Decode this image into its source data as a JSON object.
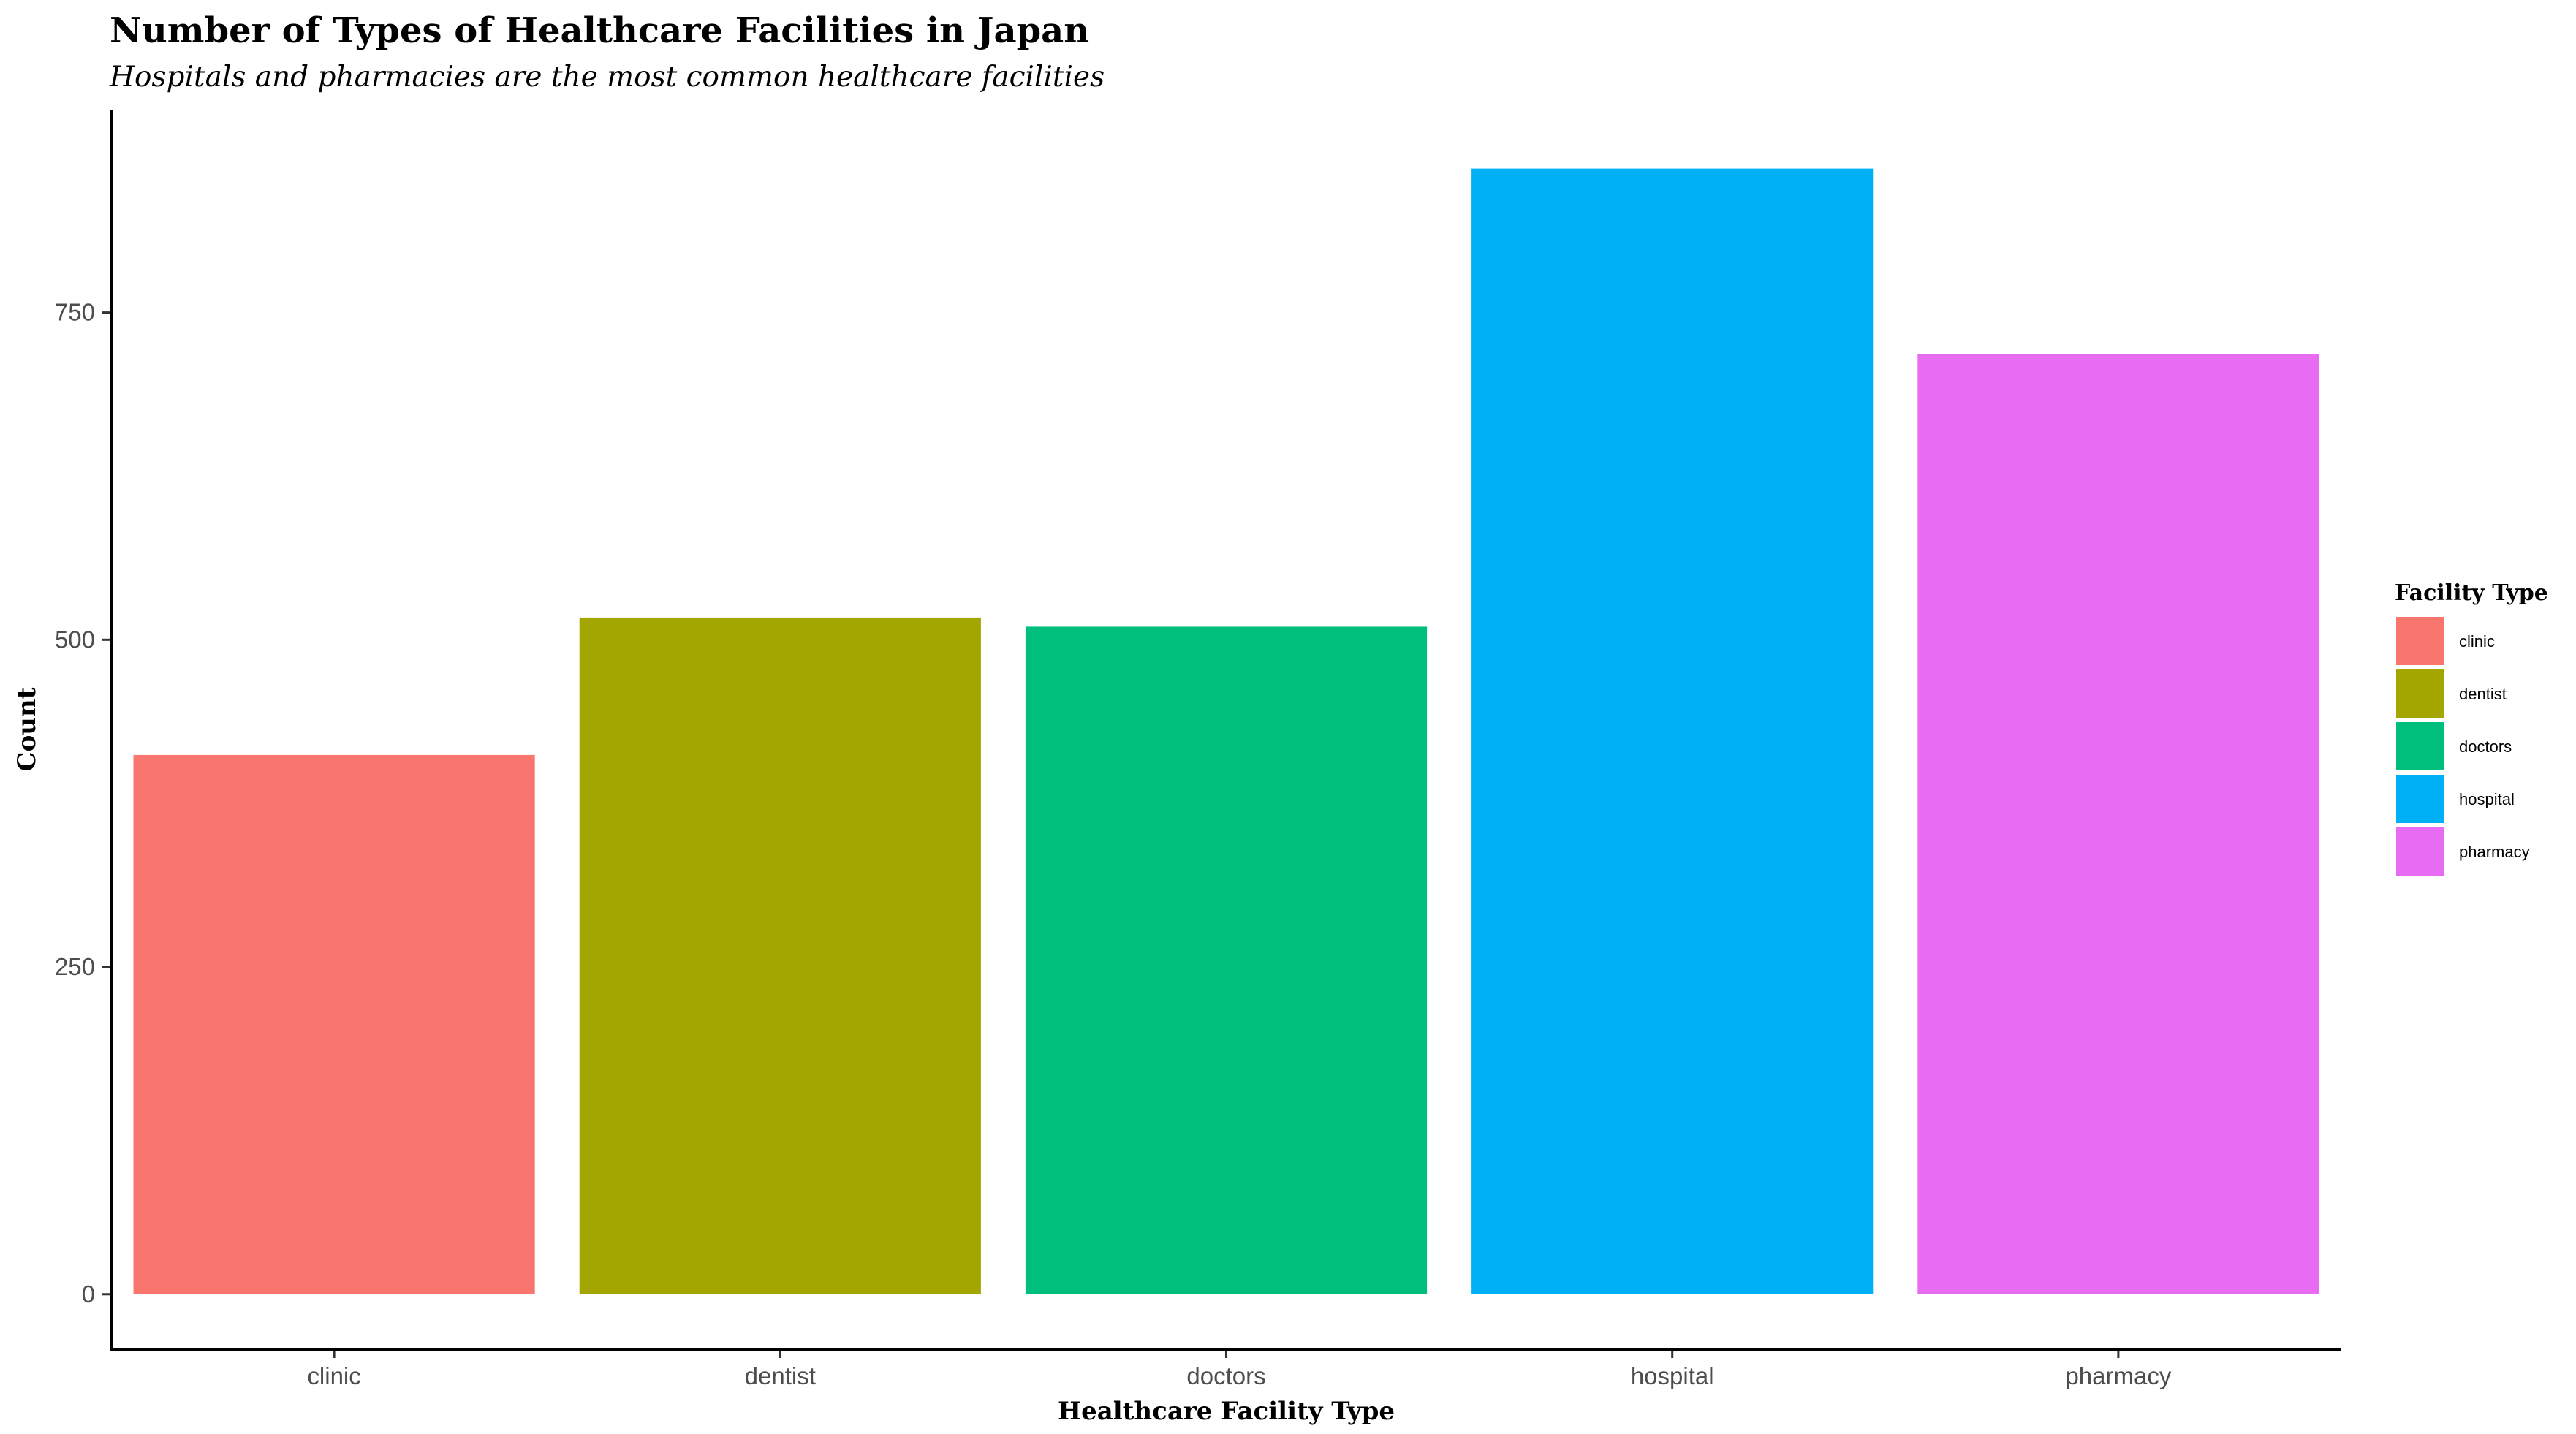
{
  "chart_data": {
    "type": "bar",
    "title": "Number of Types of Healthcare Facilities in Japan",
    "subtitle": "Hospitals and pharmacies are the most common healthcare facilities",
    "xlabel": "Healthcare Facility Type",
    "ylabel": "Count",
    "categories": [
      "clinic",
      "dentist",
      "doctors",
      "hospital",
      "pharmacy"
    ],
    "values": [
      412,
      517,
      510,
      860,
      718
    ],
    "colors": [
      "#F8766D",
      "#A3A500",
      "#00BF7D",
      "#00B0F6",
      "#E76BF3"
    ],
    "ylim": [
      -42,
      905
    ],
    "yticks": [
      0,
      250,
      500,
      750
    ],
    "ytick_labels": [
      "0",
      "250",
      "500",
      "750"
    ],
    "grid": false,
    "legend": {
      "title": "Facility Type",
      "position": "right",
      "entries": [
        "clinic",
        "dentist",
        "doctors",
        "hospital",
        "pharmacy"
      ]
    }
  }
}
